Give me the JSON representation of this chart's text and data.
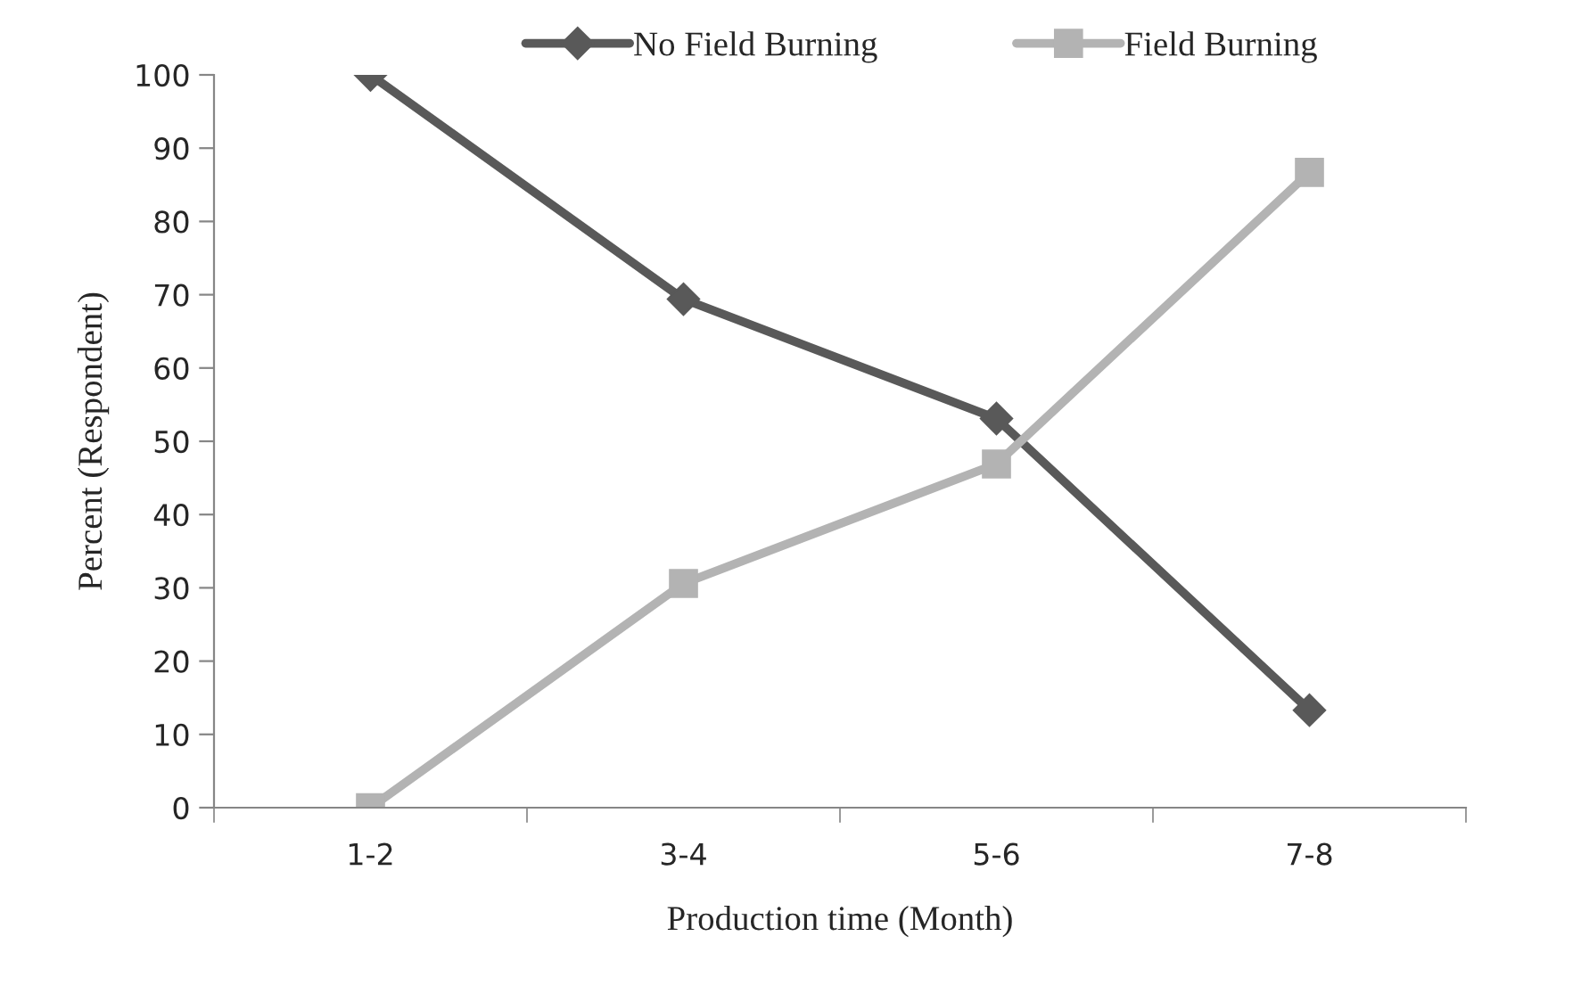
{
  "chart_data": {
    "type": "line",
    "xlabel": "Production time (Month)",
    "ylabel": "Percent (Respondent)",
    "categories": [
      "1-2",
      "3-4",
      "5-6",
      "7-8"
    ],
    "series": [
      {
        "name": "No Field Burning",
        "color": "#595959",
        "marker": "diamond",
        "values": [
          100,
          69.4,
          53.1,
          13.3
        ]
      },
      {
        "name": "Field Burning",
        "color": "#b3b3b3",
        "marker": "square",
        "values": [
          0,
          30.6,
          46.9,
          86.7
        ]
      }
    ],
    "ylim": [
      0,
      100
    ],
    "yticks": [
      0,
      10,
      20,
      30,
      40,
      50,
      60,
      70,
      80,
      90,
      100
    ],
    "grid": false,
    "legend": "top",
    "line_style": "solid"
  }
}
